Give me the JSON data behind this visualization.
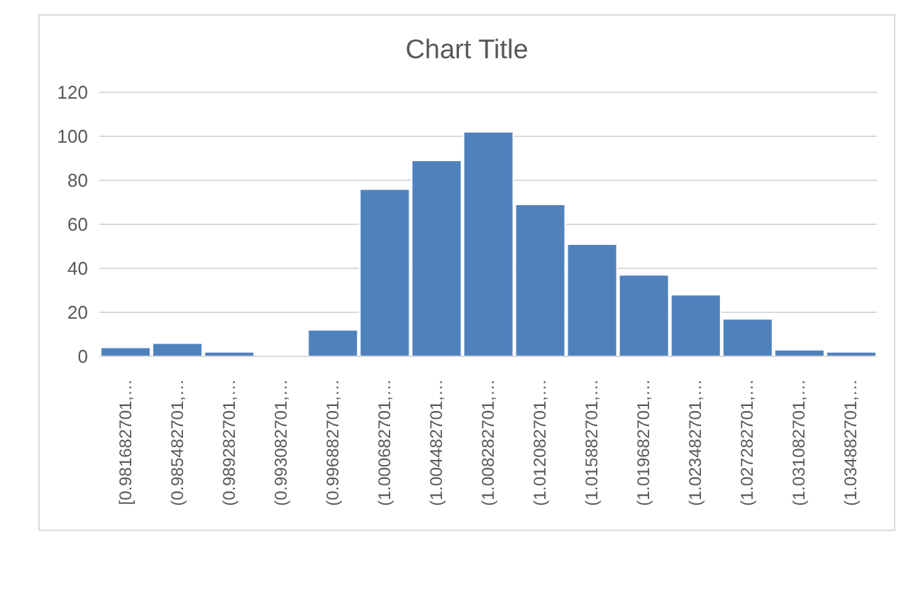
{
  "chart_data": {
    "type": "bar",
    "title": "Chart Title",
    "categories": [
      "[0.981682701,…",
      "(0.985482701,…",
      "(0.989282701,…",
      "(0.993082701,…",
      "(0.996882701,…",
      "(1.000682701,…",
      "(1.004482701,…",
      "(1.008282701,…",
      "(1.012082701,…",
      "(1.015882701,…",
      "(1.019682701,…",
      "(1.023482701,…",
      "(1.027282701,…",
      "(1.031082701,…",
      "(1.034882701,…"
    ],
    "values": [
      4,
      6,
      2,
      0,
      12,
      76,
      89,
      102,
      69,
      51,
      37,
      28,
      17,
      3,
      2
    ],
    "color": "#4f81bd",
    "ylim": [
      0,
      120
    ],
    "yticks": [
      0,
      20,
      40,
      60,
      80,
      100,
      120
    ],
    "grid": "y",
    "legend": false
  }
}
